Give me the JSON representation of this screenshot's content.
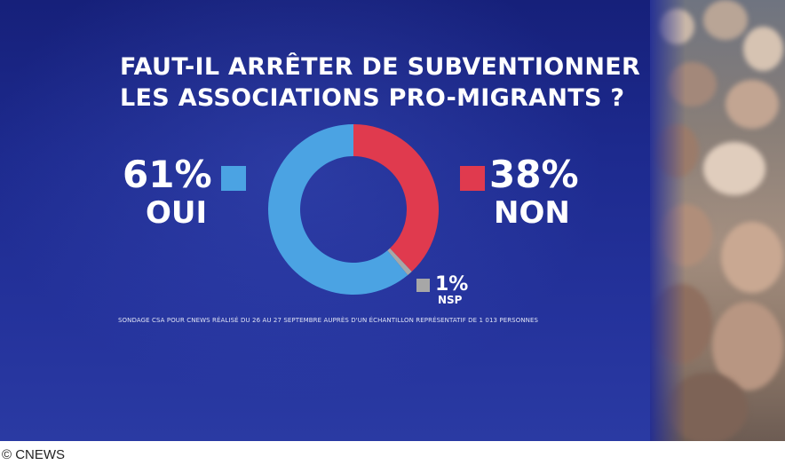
{
  "title_lines": [
    "FAUT-IL ARRÊTER DE SUBVENTIONNER",
    "LES ASSOCIATIONS PRO-MIGRANTS ?"
  ],
  "source_note": "SONDAGE CSA POUR CNEWS RÉALISÉ DU 26 AU 27 SEPTEMBRE AUPRÈS D'UN ÉCHANTILLON REPRÉSENTATIF DE 1 013 PERSONNES",
  "credit": "© CNEWS",
  "legend": {
    "oui": {
      "pct": "61%",
      "label": "OUI"
    },
    "non": {
      "pct": "38%",
      "label": "NON"
    },
    "nsp": {
      "pct": "1%",
      "label": "NSP"
    }
  },
  "chart_data": {
    "type": "pie",
    "donut": true,
    "title": "FAUT-IL ARRÊTER DE SUBVENTIONNER LES ASSOCIATIONS PRO-MIGRANTS ?",
    "categories": [
      "OUI",
      "NON",
      "NSP"
    ],
    "values": [
      61,
      38,
      1
    ],
    "unit": "%",
    "colors": [
      "#4ba3e3",
      "#e03a4e",
      "#a7a7a7"
    ],
    "start": "top",
    "direction": "clockwise",
    "order": [
      "NON",
      "NSP",
      "OUI"
    ]
  }
}
